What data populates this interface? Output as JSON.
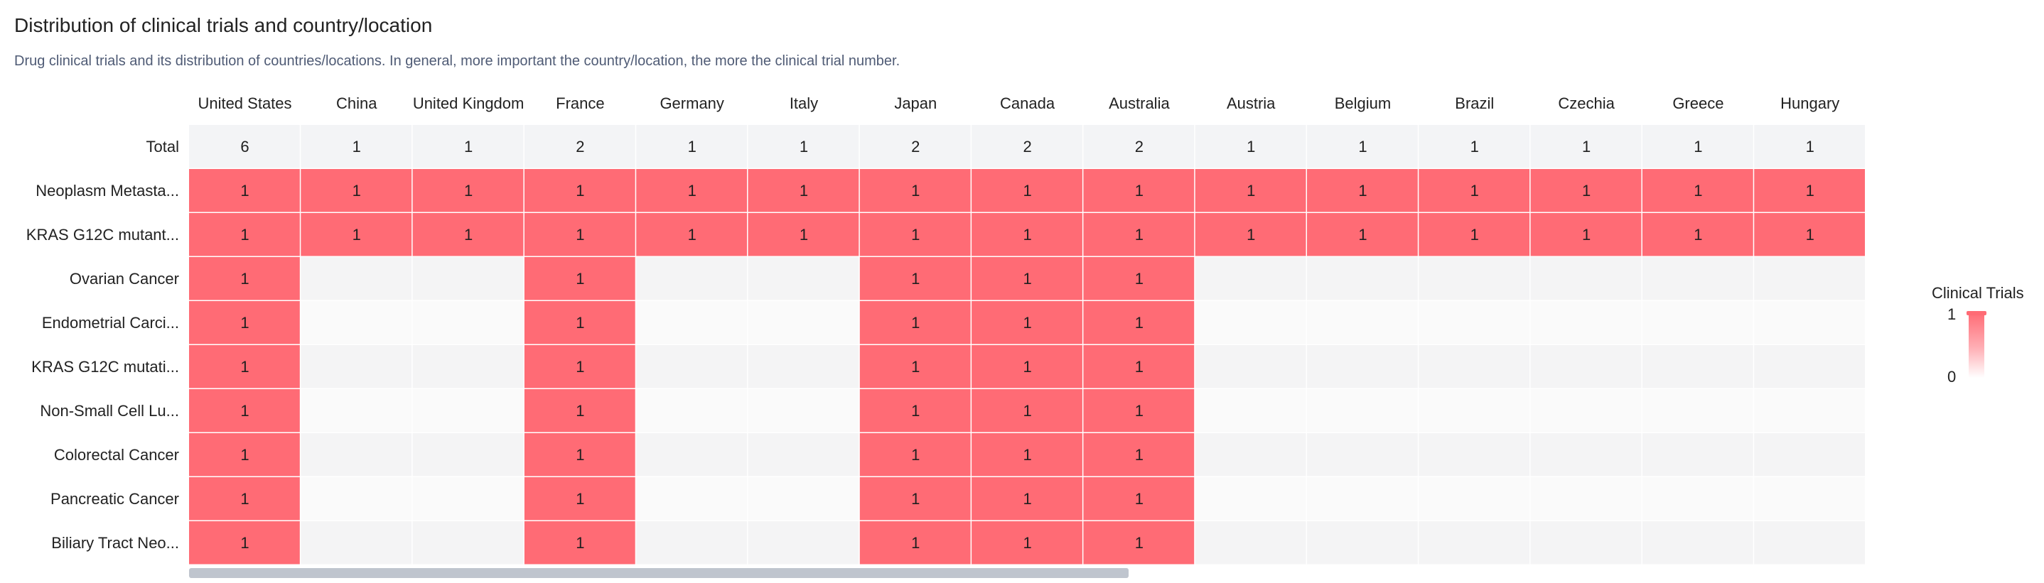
{
  "title": "Distribution of clinical trials and country/location",
  "subtitle": "Drug clinical trials and its distribution of countries/locations. In general, more important the country/location, the more the clinical trial number.",
  "colors": {
    "filled": "#ff6b75",
    "total_row": "#f3f4f6",
    "empty_even": "#f4f4f5",
    "empty_odd": "#fafafa",
    "scrollbar": "#bfc5ce"
  },
  "chart_data": {
    "type": "heatmap",
    "columns": [
      "United States",
      "China",
      "United Kingdom",
      "France",
      "Germany",
      "Italy",
      "Japan",
      "Canada",
      "Australia",
      "Austria",
      "Belgium",
      "Brazil",
      "Czechia",
      "Greece",
      "Hungary"
    ],
    "total_row": {
      "label": "Total",
      "values": [
        6,
        1,
        1,
        2,
        1,
        1,
        2,
        2,
        2,
        1,
        1,
        1,
        1,
        1,
        1
      ]
    },
    "rows": [
      {
        "label": "Neoplasm Metasta...",
        "values": [
          1,
          1,
          1,
          1,
          1,
          1,
          1,
          1,
          1,
          1,
          1,
          1,
          1,
          1,
          1
        ]
      },
      {
        "label": "KRAS G12C mutant...",
        "values": [
          1,
          1,
          1,
          1,
          1,
          1,
          1,
          1,
          1,
          1,
          1,
          1,
          1,
          1,
          1
        ]
      },
      {
        "label": "Ovarian Cancer",
        "values": [
          1,
          null,
          null,
          1,
          null,
          null,
          1,
          1,
          1,
          null,
          null,
          null,
          null,
          null,
          null
        ]
      },
      {
        "label": "Endometrial Carci...",
        "values": [
          1,
          null,
          null,
          1,
          null,
          null,
          1,
          1,
          1,
          null,
          null,
          null,
          null,
          null,
          null
        ]
      },
      {
        "label": "KRAS G12C mutati...",
        "values": [
          1,
          null,
          null,
          1,
          null,
          null,
          1,
          1,
          1,
          null,
          null,
          null,
          null,
          null,
          null
        ]
      },
      {
        "label": "Non-Small Cell Lu...",
        "values": [
          1,
          null,
          null,
          1,
          null,
          null,
          1,
          1,
          1,
          null,
          null,
          null,
          null,
          null,
          null
        ]
      },
      {
        "label": "Colorectal Cancer",
        "values": [
          1,
          null,
          null,
          1,
          null,
          null,
          1,
          1,
          1,
          null,
          null,
          null,
          null,
          null,
          null
        ]
      },
      {
        "label": "Pancreatic Cancer",
        "values": [
          1,
          null,
          null,
          1,
          null,
          null,
          1,
          1,
          1,
          null,
          null,
          null,
          null,
          null,
          null
        ]
      },
      {
        "label": "Biliary Tract Neo...",
        "values": [
          1,
          null,
          null,
          1,
          null,
          null,
          1,
          1,
          1,
          null,
          null,
          null,
          null,
          null,
          null
        ]
      }
    ],
    "legend": {
      "title": "Clinical Trials",
      "max": 1,
      "min": 0,
      "max_label": "1",
      "min_label": "0"
    },
    "scroll_visible_fraction": 0.56
  }
}
